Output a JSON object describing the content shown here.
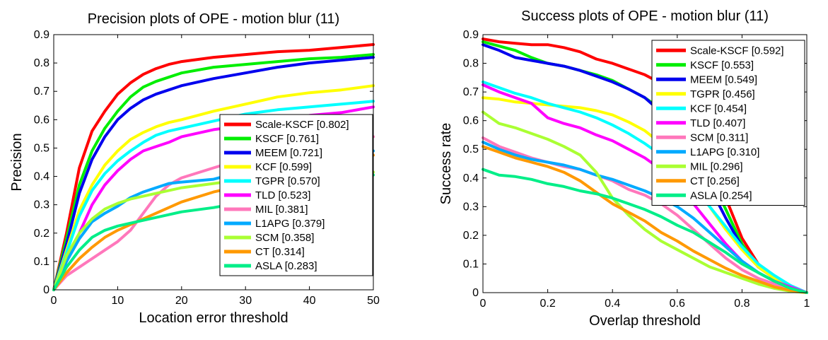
{
  "chart_data": [
    {
      "type": "line",
      "title": "Precision plots of OPE - motion blur (11)",
      "xlabel": "Location error threshold",
      "ylabel": "Precision",
      "xlim": [
        0,
        50
      ],
      "ylim": [
        0,
        0.9
      ],
      "xticks": [
        0,
        10,
        20,
        30,
        40,
        50
      ],
      "yticks": [
        0,
        0.1,
        0.2,
        0.3,
        0.4,
        0.5,
        0.6,
        0.7,
        0.8,
        0.9
      ],
      "xtick_labels": [
        "0",
        "10",
        "20",
        "30",
        "40",
        "50"
      ],
      "ytick_labels": [
        "0",
        "0.1",
        "0.2",
        "0.3",
        "0.4",
        "0.5",
        "0.6",
        "0.7",
        "0.8",
        "0.9"
      ],
      "grid": false,
      "legend_position": "lower-right",
      "series": [
        {
          "name": "Scale-KSCF [0.802]",
          "color": "#ff0000",
          "x": [
            0,
            2,
            4,
            6,
            8,
            10,
            12,
            14,
            16,
            18,
            20,
            25,
            30,
            35,
            40,
            45,
            50
          ],
          "y": [
            0.0,
            0.2,
            0.43,
            0.56,
            0.63,
            0.69,
            0.73,
            0.76,
            0.78,
            0.795,
            0.805,
            0.82,
            0.83,
            0.84,
            0.845,
            0.855,
            0.865
          ]
        },
        {
          "name": "KSCF [0.761]",
          "color": "#00ee00",
          "x": [
            0,
            2,
            4,
            6,
            8,
            10,
            12,
            14,
            16,
            18,
            20,
            25,
            30,
            35,
            40,
            45,
            50
          ],
          "y": [
            0.0,
            0.18,
            0.37,
            0.49,
            0.57,
            0.63,
            0.68,
            0.715,
            0.735,
            0.75,
            0.765,
            0.785,
            0.795,
            0.805,
            0.815,
            0.82,
            0.83
          ]
        },
        {
          "name": "MEEM [0.721]",
          "color": "#0000ee",
          "x": [
            0,
            2,
            4,
            6,
            8,
            10,
            12,
            14,
            16,
            18,
            20,
            25,
            30,
            35,
            40,
            45,
            50
          ],
          "y": [
            0.0,
            0.16,
            0.34,
            0.46,
            0.54,
            0.6,
            0.64,
            0.67,
            0.69,
            0.705,
            0.72,
            0.745,
            0.765,
            0.785,
            0.8,
            0.81,
            0.82
          ]
        },
        {
          "name": "KCF [0.599]",
          "color": "#ffff00",
          "x": [
            0,
            2,
            4,
            6,
            8,
            10,
            12,
            14,
            16,
            18,
            20,
            25,
            30,
            35,
            40,
            45,
            50
          ],
          "y": [
            0.0,
            0.14,
            0.28,
            0.37,
            0.44,
            0.49,
            0.53,
            0.555,
            0.575,
            0.59,
            0.6,
            0.63,
            0.655,
            0.68,
            0.695,
            0.705,
            0.72
          ]
        },
        {
          "name": "TGPR [0.570]",
          "color": "#00ffff",
          "x": [
            0,
            2,
            4,
            6,
            8,
            10,
            12,
            14,
            16,
            18,
            20,
            25,
            30,
            35,
            40,
            45,
            50
          ],
          "y": [
            0.0,
            0.13,
            0.26,
            0.35,
            0.41,
            0.455,
            0.49,
            0.52,
            0.545,
            0.56,
            0.57,
            0.595,
            0.62,
            0.635,
            0.645,
            0.655,
            0.665
          ]
        },
        {
          "name": "TLD [0.523]",
          "color": "#ff00ff",
          "x": [
            0,
            2,
            4,
            6,
            8,
            10,
            12,
            14,
            16,
            18,
            20,
            25,
            30,
            35,
            40,
            45,
            50
          ],
          "y": [
            0.0,
            0.1,
            0.2,
            0.3,
            0.37,
            0.42,
            0.46,
            0.49,
            0.505,
            0.52,
            0.54,
            0.565,
            0.58,
            0.6,
            0.615,
            0.625,
            0.645
          ]
        },
        {
          "name": "MIL [0.381]",
          "color": "#ff77bb",
          "x": [
            0,
            2,
            4,
            6,
            8,
            10,
            12,
            14,
            16,
            18,
            20,
            25,
            30,
            35,
            40,
            45,
            50
          ],
          "y": [
            0.0,
            0.05,
            0.08,
            0.11,
            0.14,
            0.17,
            0.21,
            0.27,
            0.33,
            0.37,
            0.395,
            0.43,
            0.465,
            0.48,
            0.505,
            0.52,
            0.54
          ]
        },
        {
          "name": "L1APG [0.379]",
          "color": "#00aaff",
          "x": [
            0,
            2,
            4,
            6,
            8,
            10,
            12,
            14,
            16,
            18,
            20,
            25,
            30,
            35,
            40,
            45,
            50
          ],
          "y": [
            0.0,
            0.1,
            0.18,
            0.24,
            0.27,
            0.295,
            0.325,
            0.345,
            0.36,
            0.375,
            0.38,
            0.39,
            0.42,
            0.44,
            0.46,
            0.475,
            0.49
          ]
        },
        {
          "name": "SCM [0.358]",
          "color": "#aaff33",
          "x": [
            0,
            2,
            4,
            6,
            8,
            10,
            12,
            14,
            16,
            18,
            20,
            25,
            30,
            35,
            40,
            45,
            50
          ],
          "y": [
            0.0,
            0.12,
            0.2,
            0.25,
            0.285,
            0.305,
            0.32,
            0.33,
            0.34,
            0.35,
            0.36,
            0.375,
            0.39,
            0.4,
            0.405,
            0.41,
            0.415
          ]
        },
        {
          "name": "CT [0.314]",
          "color": "#ff9900",
          "x": [
            0,
            2,
            4,
            6,
            8,
            10,
            12,
            14,
            16,
            18,
            20,
            25,
            30,
            35,
            40,
            45,
            50
          ],
          "y": [
            0.0,
            0.06,
            0.11,
            0.15,
            0.185,
            0.21,
            0.23,
            0.25,
            0.27,
            0.29,
            0.31,
            0.345,
            0.37,
            0.395,
            0.43,
            0.455,
            0.475
          ]
        },
        {
          "name": "ASLA [0.283]",
          "color": "#00ee88",
          "x": [
            0,
            2,
            4,
            6,
            8,
            10,
            12,
            14,
            16,
            18,
            20,
            25,
            30,
            35,
            40,
            45,
            50
          ],
          "y": [
            0.0,
            0.08,
            0.14,
            0.185,
            0.21,
            0.225,
            0.235,
            0.245,
            0.255,
            0.265,
            0.275,
            0.29,
            0.31,
            0.33,
            0.355,
            0.38,
            0.405
          ]
        }
      ]
    },
    {
      "type": "line",
      "title": "Success plots of OPE - motion blur (11)",
      "xlabel": "Overlap threshold",
      "ylabel": "Success rate",
      "xlim": [
        0,
        1
      ],
      "ylim": [
        0,
        0.9
      ],
      "xticks": [
        0,
        0.2,
        0.4,
        0.6,
        0.8,
        1
      ],
      "yticks": [
        0,
        0.1,
        0.2,
        0.3,
        0.4,
        0.5,
        0.6,
        0.7,
        0.8,
        0.9
      ],
      "xtick_labels": [
        "0",
        "0.2",
        "0.4",
        "0.6",
        "0.8",
        "1"
      ],
      "ytick_labels": [
        "0",
        "0.1",
        "0.2",
        "0.3",
        "0.4",
        "0.5",
        "0.6",
        "0.7",
        "0.8",
        "0.9"
      ],
      "grid": false,
      "legend_position": "upper-right",
      "series": [
        {
          "name": "Scale-KSCF [0.592]",
          "color": "#ff0000",
          "x": [
            0,
            0.05,
            0.1,
            0.15,
            0.2,
            0.25,
            0.3,
            0.35,
            0.4,
            0.45,
            0.5,
            0.55,
            0.6,
            0.65,
            0.7,
            0.75,
            0.8,
            0.85,
            0.9,
            0.95,
            1.0
          ],
          "y": [
            0.885,
            0.875,
            0.87,
            0.865,
            0.865,
            0.855,
            0.84,
            0.815,
            0.8,
            0.78,
            0.76,
            0.73,
            0.69,
            0.6,
            0.47,
            0.33,
            0.19,
            0.1,
            0.05,
            0.02,
            0.0
          ]
        },
        {
          "name": "KSCF [0.553]",
          "color": "#00ee00",
          "x": [
            0,
            0.05,
            0.1,
            0.15,
            0.2,
            0.25,
            0.3,
            0.35,
            0.4,
            0.45,
            0.5,
            0.55,
            0.6,
            0.65,
            0.7,
            0.75,
            0.8,
            0.85,
            0.9,
            0.95,
            1.0
          ],
          "y": [
            0.875,
            0.86,
            0.845,
            0.82,
            0.8,
            0.79,
            0.775,
            0.76,
            0.74,
            0.71,
            0.68,
            0.64,
            0.59,
            0.51,
            0.41,
            0.29,
            0.17,
            0.09,
            0.05,
            0.02,
            0.0
          ]
        },
        {
          "name": "MEEM [0.549]",
          "color": "#0000ee",
          "x": [
            0,
            0.05,
            0.1,
            0.15,
            0.2,
            0.25,
            0.3,
            0.35,
            0.4,
            0.45,
            0.5,
            0.55,
            0.6,
            0.65,
            0.7,
            0.75,
            0.8,
            0.85,
            0.9,
            0.95,
            1.0
          ],
          "y": [
            0.865,
            0.845,
            0.82,
            0.81,
            0.8,
            0.79,
            0.775,
            0.755,
            0.735,
            0.71,
            0.68,
            0.63,
            0.57,
            0.48,
            0.37,
            0.26,
            0.16,
            0.09,
            0.05,
            0.02,
            0.0
          ]
        },
        {
          "name": "TGPR [0.456]",
          "color": "#ffff00",
          "x": [
            0,
            0.05,
            0.1,
            0.15,
            0.2,
            0.25,
            0.3,
            0.35,
            0.4,
            0.45,
            0.5,
            0.55,
            0.6,
            0.65,
            0.7,
            0.75,
            0.8,
            0.85,
            0.9,
            0.95,
            1.0
          ],
          "y": [
            0.68,
            0.675,
            0.665,
            0.66,
            0.655,
            0.65,
            0.645,
            0.635,
            0.62,
            0.595,
            0.565,
            0.52,
            0.46,
            0.38,
            0.3,
            0.22,
            0.15,
            0.09,
            0.05,
            0.02,
            0.0
          ]
        },
        {
          "name": "KCF [0.454]",
          "color": "#00ffff",
          "x": [
            0,
            0.05,
            0.1,
            0.15,
            0.2,
            0.25,
            0.3,
            0.35,
            0.4,
            0.45,
            0.5,
            0.55,
            0.6,
            0.65,
            0.7,
            0.75,
            0.8,
            0.85,
            0.9,
            0.95,
            1.0
          ],
          "y": [
            0.735,
            0.715,
            0.695,
            0.68,
            0.66,
            0.645,
            0.63,
            0.61,
            0.585,
            0.555,
            0.52,
            0.48,
            0.43,
            0.37,
            0.3,
            0.23,
            0.16,
            0.1,
            0.06,
            0.025,
            0.0
          ]
        },
        {
          "name": "TLD [0.407]",
          "color": "#ff00ff",
          "x": [
            0,
            0.05,
            0.1,
            0.15,
            0.2,
            0.25,
            0.3,
            0.35,
            0.4,
            0.45,
            0.5,
            0.55,
            0.6,
            0.65,
            0.7,
            0.75,
            0.8,
            0.85,
            0.9,
            0.95,
            1.0
          ],
          "y": [
            0.725,
            0.7,
            0.68,
            0.66,
            0.61,
            0.59,
            0.575,
            0.55,
            0.53,
            0.5,
            0.47,
            0.43,
            0.38,
            0.31,
            0.24,
            0.17,
            0.11,
            0.07,
            0.04,
            0.02,
            0.0
          ]
        },
        {
          "name": "SCM [0.311]",
          "color": "#ff77bb",
          "x": [
            0,
            0.05,
            0.1,
            0.15,
            0.2,
            0.25,
            0.3,
            0.35,
            0.4,
            0.45,
            0.5,
            0.55,
            0.6,
            0.65,
            0.7,
            0.75,
            0.8,
            0.85,
            0.9,
            0.95,
            1.0
          ],
          "y": [
            0.54,
            0.51,
            0.49,
            0.47,
            0.455,
            0.44,
            0.43,
            0.41,
            0.39,
            0.36,
            0.34,
            0.31,
            0.27,
            0.22,
            0.17,
            0.12,
            0.08,
            0.05,
            0.03,
            0.01,
            0.0
          ]
        },
        {
          "name": "L1APG [0.310]",
          "color": "#00aaff",
          "x": [
            0,
            0.05,
            0.1,
            0.15,
            0.2,
            0.25,
            0.3,
            0.35,
            0.4,
            0.45,
            0.5,
            0.55,
            0.6,
            0.65,
            0.7,
            0.75,
            0.8,
            0.85,
            0.9,
            0.95,
            1.0
          ],
          "y": [
            0.525,
            0.5,
            0.48,
            0.465,
            0.455,
            0.445,
            0.43,
            0.41,
            0.395,
            0.375,
            0.355,
            0.33,
            0.3,
            0.26,
            0.21,
            0.16,
            0.11,
            0.07,
            0.04,
            0.015,
            0.0
          ]
        },
        {
          "name": "MIL [0.296]",
          "color": "#aaff33",
          "x": [
            0,
            0.05,
            0.1,
            0.15,
            0.2,
            0.25,
            0.3,
            0.35,
            0.4,
            0.45,
            0.5,
            0.55,
            0.6,
            0.65,
            0.7,
            0.75,
            0.8,
            0.85,
            0.9,
            0.95,
            1.0
          ],
          "y": [
            0.63,
            0.59,
            0.575,
            0.555,
            0.535,
            0.51,
            0.48,
            0.42,
            0.33,
            0.27,
            0.22,
            0.18,
            0.15,
            0.12,
            0.09,
            0.07,
            0.05,
            0.03,
            0.015,
            0.005,
            0.0
          ]
        },
        {
          "name": "CT [0.256]",
          "color": "#ff9900",
          "x": [
            0,
            0.05,
            0.1,
            0.15,
            0.2,
            0.25,
            0.3,
            0.35,
            0.4,
            0.45,
            0.5,
            0.55,
            0.6,
            0.65,
            0.7,
            0.75,
            0.8,
            0.85,
            0.9,
            0.95,
            1.0
          ],
          "y": [
            0.51,
            0.49,
            0.47,
            0.455,
            0.44,
            0.42,
            0.39,
            0.35,
            0.31,
            0.28,
            0.25,
            0.21,
            0.18,
            0.145,
            0.115,
            0.085,
            0.06,
            0.04,
            0.02,
            0.008,
            0.0
          ]
        },
        {
          "name": "ASLA [0.254]",
          "color": "#00ee88",
          "x": [
            0,
            0.05,
            0.1,
            0.15,
            0.2,
            0.25,
            0.3,
            0.35,
            0.4,
            0.45,
            0.5,
            0.55,
            0.6,
            0.65,
            0.7,
            0.75,
            0.8,
            0.85,
            0.9,
            0.95,
            1.0
          ],
          "y": [
            0.43,
            0.41,
            0.405,
            0.395,
            0.38,
            0.37,
            0.355,
            0.345,
            0.33,
            0.31,
            0.29,
            0.265,
            0.235,
            0.21,
            0.175,
            0.14,
            0.1,
            0.07,
            0.04,
            0.015,
            0.0
          ]
        }
      ]
    }
  ]
}
